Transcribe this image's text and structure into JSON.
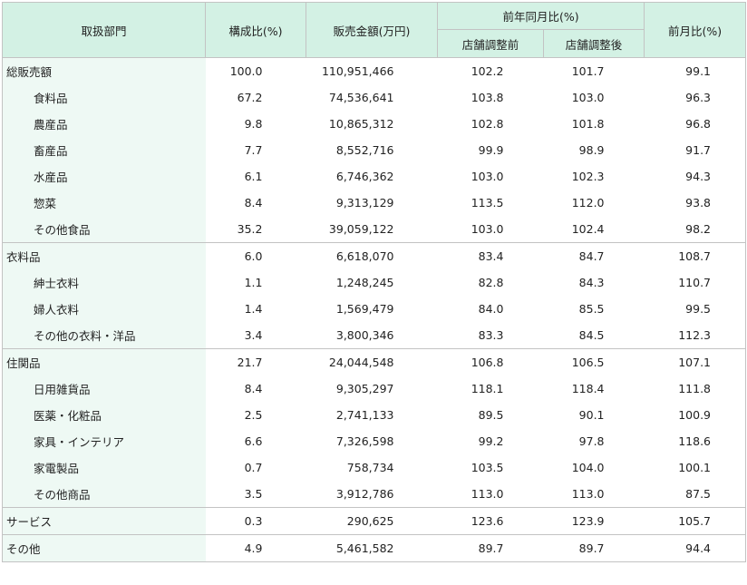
{
  "header": {
    "dept": "取扱部門",
    "ratio": "構成比(%)",
    "sales": "販売金額(万円)",
    "yoy": "前年同月比(%)",
    "yoy_before": "店舗調整前",
    "yoy_after": "店舗調整後",
    "mom": "前月比(%)"
  },
  "groups": [
    {
      "rows": [
        {
          "name": "総販売額",
          "ratio": "100.0",
          "sales": "110,951,466",
          "yoy_before": "102.2",
          "yoy_after": "101.7",
          "mom": "99.1"
        },
        {
          "name": "食料品",
          "ratio": "67.2",
          "sales": "74,536,641",
          "yoy_before": "103.8",
          "yoy_after": "103.0",
          "mom": "96.3"
        },
        {
          "name": "農産品",
          "ratio": "9.8",
          "sales": "10,865,312",
          "yoy_before": "102.8",
          "yoy_after": "101.8",
          "mom": "96.8"
        },
        {
          "name": "畜産品",
          "ratio": "7.7",
          "sales": "8,552,716",
          "yoy_before": "99.9",
          "yoy_after": "98.9",
          "mom": "91.7"
        },
        {
          "name": "水産品",
          "ratio": "6.1",
          "sales": "6,746,362",
          "yoy_before": "103.0",
          "yoy_after": "102.3",
          "mom": "94.3"
        },
        {
          "name": "惣菜",
          "ratio": "8.4",
          "sales": "9,313,129",
          "yoy_before": "113.5",
          "yoy_after": "112.0",
          "mom": "93.8"
        },
        {
          "name": "その他食品",
          "ratio": "35.2",
          "sales": "39,059,122",
          "yoy_before": "103.0",
          "yoy_after": "102.4",
          "mom": "98.2"
        }
      ]
    },
    {
      "rows": [
        {
          "name": "衣料品",
          "ratio": "6.0",
          "sales": "6,618,070",
          "yoy_before": "83.4",
          "yoy_after": "84.7",
          "mom": "108.7"
        },
        {
          "name": "紳士衣料",
          "ratio": "1.1",
          "sales": "1,248,245",
          "yoy_before": "82.8",
          "yoy_after": "84.3",
          "mom": "110.7"
        },
        {
          "name": "婦人衣料",
          "ratio": "1.4",
          "sales": "1,569,479",
          "yoy_before": "84.0",
          "yoy_after": "85.5",
          "mom": "99.5"
        },
        {
          "name": "その他の衣料・洋品",
          "ratio": "3.4",
          "sales": "3,800,346",
          "yoy_before": "83.3",
          "yoy_after": "84.5",
          "mom": "112.3"
        }
      ]
    },
    {
      "rows": [
        {
          "name": "住関品",
          "ratio": "21.7",
          "sales": "24,044,548",
          "yoy_before": "106.8",
          "yoy_after": "106.5",
          "mom": "107.1"
        },
        {
          "name": "日用雑貨品",
          "ratio": "8.4",
          "sales": "9,305,297",
          "yoy_before": "118.1",
          "yoy_after": "118.4",
          "mom": "111.8"
        },
        {
          "name": "医薬・化粧品",
          "ratio": "2.5",
          "sales": "2,741,133",
          "yoy_before": "89.5",
          "yoy_after": "90.1",
          "mom": "100.9"
        },
        {
          "name": "家具・インテリア",
          "ratio": "6.6",
          "sales": "7,326,598",
          "yoy_before": "99.2",
          "yoy_after": "97.8",
          "mom": "118.6"
        },
        {
          "name": "家電製品",
          "ratio": "0.7",
          "sales": "758,734",
          "yoy_before": "103.5",
          "yoy_after": "104.0",
          "mom": "100.1"
        },
        {
          "name": "その他商品",
          "ratio": "3.5",
          "sales": "3,912,786",
          "yoy_before": "113.0",
          "yoy_after": "113.0",
          "mom": "87.5"
        }
      ]
    },
    {
      "rows": [
        {
          "name": "サービス",
          "ratio": "0.3",
          "sales": "290,625",
          "yoy_before": "123.6",
          "yoy_after": "123.9",
          "mom": "105.7"
        }
      ]
    },
    {
      "rows": [
        {
          "name": "その他",
          "ratio": "4.9",
          "sales": "5,461,582",
          "yoy_before": "89.7",
          "yoy_after": "89.7",
          "mom": "94.4"
        }
      ]
    }
  ]
}
